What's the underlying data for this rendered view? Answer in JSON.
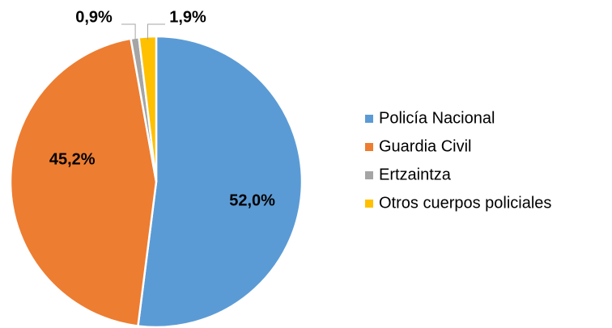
{
  "chart_data": {
    "type": "pie",
    "categories": [
      "Policía Nacional",
      "Guardia Civil",
      "Ertzaintza",
      "Otros cuerpos policiales"
    ],
    "values": [
      52.0,
      45.2,
      0.9,
      1.9
    ],
    "value_labels": [
      "52,0%",
      "45,2%",
      "0,9%",
      "1,9%"
    ],
    "colors": [
      "#5b9bd5",
      "#ed7d31",
      "#a5a5a5",
      "#ffc000"
    ],
    "legend": "right"
  }
}
